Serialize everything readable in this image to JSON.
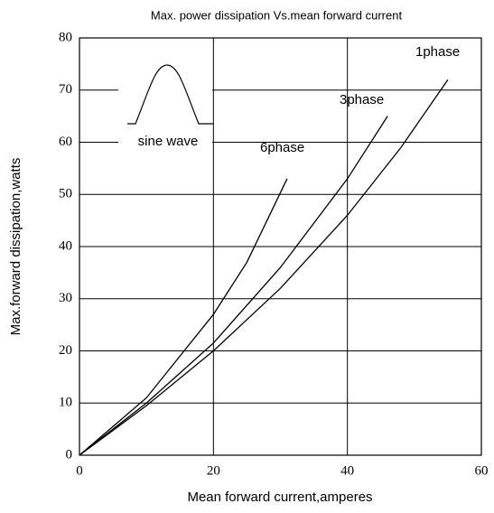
{
  "chart_data": {
    "type": "line",
    "title": "Max. power dissipation Vs.mean forward current",
    "x_label": "Mean forward current,amperes",
    "y_label": "Max.forward dissipation,watts",
    "annotation": "sine wave",
    "xlim": [
      0,
      60
    ],
    "xticks": [
      0,
      20,
      40,
      60
    ],
    "ylim": [
      0,
      80
    ],
    "yticks": [
      0,
      10,
      20,
      30,
      40,
      50,
      60,
      70,
      80
    ],
    "grid": true,
    "series": [
      {
        "name": "1phase",
        "color": "#000000",
        "x": [
          0,
          10,
          20,
          30,
          40,
          48,
          55
        ],
        "values": [
          0,
          9.5,
          20,
          32,
          46,
          59,
          72
        ]
      },
      {
        "name": "3phase",
        "color": "#000000",
        "x": [
          0,
          10,
          20,
          30,
          40,
          46
        ],
        "values": [
          0,
          10,
          21.5,
          36,
          53,
          65
        ]
      },
      {
        "name": "6phase",
        "color": "#000000",
        "x": [
          0,
          10,
          20,
          25,
          31
        ],
        "values": [
          0,
          11,
          27,
          37,
          53
        ]
      }
    ]
  }
}
